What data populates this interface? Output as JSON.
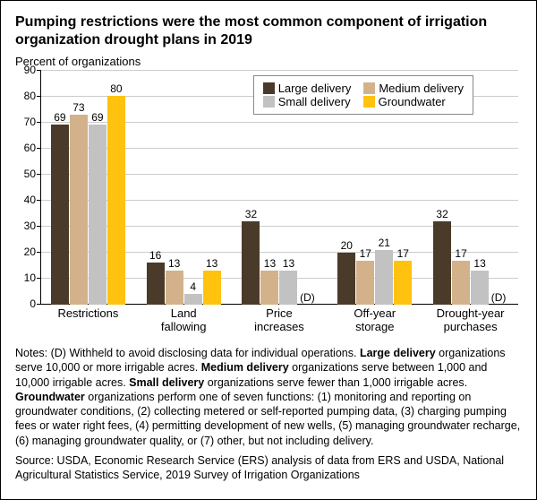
{
  "title": "Pumping restrictions were the most common component of irrigation organization drought plans in 2019",
  "y_axis_label": "Percent of organizations",
  "chart": {
    "type": "bar",
    "ylim": [
      0,
      90
    ],
    "ytick_step": 10,
    "grid_color": "#cccccc",
    "series": [
      {
        "key": "large",
        "label": "Large delivery",
        "color": "#4a3a2a"
      },
      {
        "key": "medium",
        "label": "Medium delivery",
        "color": "#d3b28b"
      },
      {
        "key": "small",
        "label": "Small delivery",
        "color": "#c2c2c2"
      },
      {
        "key": "ground",
        "label": "Groundwater",
        "color": "#ffc20e"
      }
    ],
    "categories": [
      {
        "label": "Restrictions",
        "values": [
          "69",
          "73",
          "69",
          "80"
        ]
      },
      {
        "label": "Land\nfallowing",
        "values": [
          "16",
          "13",
          "4",
          "13"
        ]
      },
      {
        "label": "Price\nincreases",
        "values": [
          "32",
          "13",
          "13",
          "(D)"
        ]
      },
      {
        "label": "Off-year\nstorage",
        "values": [
          "20",
          "17",
          "21",
          "17"
        ]
      },
      {
        "label": "Drought-year\npurchases",
        "values": [
          "32",
          "17",
          "13",
          "(D)"
        ]
      }
    ]
  },
  "notes_label": "Notes:",
  "notes_body_1": " (D) Withheld to avoid disclosing data for individual operations. ",
  "notes_bold_1": "Large delivery",
  "notes_body_2": " organizations serve 10,000 or more irrigable acres. ",
  "notes_bold_2": "Medium delivery",
  "notes_body_3": " organizations serve between 1,000 and 10,000 irrigable acres. ",
  "notes_bold_3": "Small delivery",
  "notes_body_4": " organizations serve fewer than 1,000 irrigable acres. ",
  "notes_bold_4": "Groundwater",
  "notes_body_5": " organizations perform one of seven functions: (1) monitoring and reporting on groundwater conditions, (2) collecting metered or self-reported pumping data, (3) charging pumping fees or water right fees, (4) permitting development of new wells, (5) managing groundwater recharge, (6) managing groundwater quality, or (7) other, but not including delivery.",
  "source": "Source: USDA, Economic Research Service (ERS) analysis of data from ERS and USDA, National Agricultural Statistics Service, 2019 Survey of Irrigation Organizations"
}
